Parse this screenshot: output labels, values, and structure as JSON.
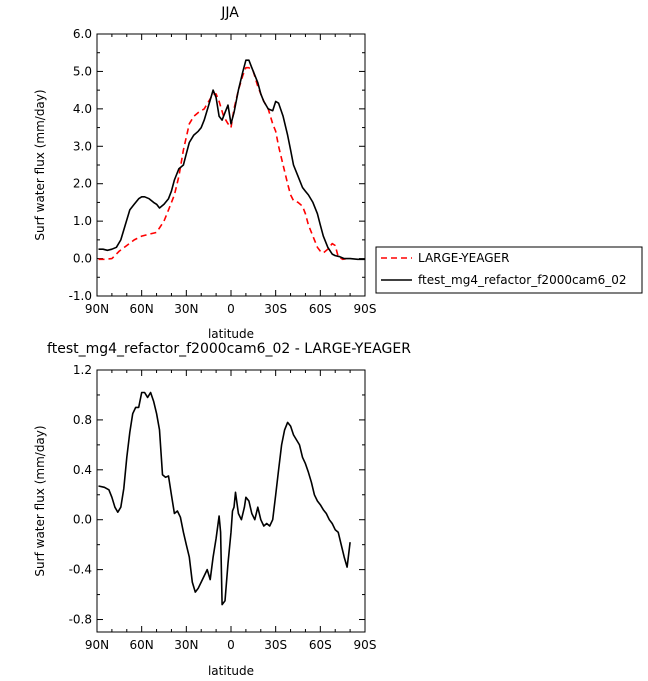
{
  "chart_data": [
    {
      "type": "line",
      "title": "JJA",
      "xlabel": "latitude",
      "ylabel": "Surf water flux (mm/day)",
      "x_is_latitude_deg": true,
      "xlim": [
        90,
        -90
      ],
      "ylim": [
        -1.0,
        6.0
      ],
      "xticks": [
        90,
        60,
        30,
        0,
        -30,
        -60,
        -90
      ],
      "xtick_labels": [
        "90N",
        "60N",
        "30N",
        "0",
        "30S",
        "60S",
        "90S"
      ],
      "yticks": [
        -1,
        0,
        1,
        2,
        3,
        4,
        5,
        6
      ],
      "ytick_labels": [
        "-1.0",
        "0.0",
        "1.0",
        "2.0",
        "3.0",
        "4.0",
        "5.0",
        "6.0"
      ],
      "grid": false,
      "legend_placement": "right, outside plot",
      "series": [
        {
          "name": "LARGE-YEAGER",
          "color": "#ff0000",
          "dash": "dashed",
          "x": [
            89,
            85,
            80,
            75,
            70,
            65,
            60,
            55,
            50,
            45,
            42,
            38,
            35,
            32,
            28,
            25,
            22,
            18,
            15,
            12,
            10,
            8,
            5,
            2,
            0,
            -2,
            -5,
            -8,
            -10,
            -12,
            -15,
            -18,
            -20,
            -22,
            -25,
            -28,
            -30,
            -32,
            -35,
            -38,
            -40,
            -42,
            -45,
            -48,
            -50,
            -52,
            -55,
            -58,
            -60,
            -62,
            -65,
            -68,
            -70,
            -72,
            -75,
            -78,
            -80
          ],
          "y": [
            -0.02,
            -0.02,
            0.0,
            0.2,
            0.35,
            0.5,
            0.6,
            0.65,
            0.7,
            1.0,
            1.3,
            1.7,
            2.2,
            2.9,
            3.6,
            3.8,
            3.9,
            4.0,
            4.2,
            4.4,
            4.4,
            4.2,
            3.8,
            3.6,
            3.5,
            4.0,
            4.5,
            4.9,
            5.1,
            5.1,
            5.0,
            4.6,
            4.4,
            4.2,
            4.0,
            3.6,
            3.4,
            3.0,
            2.5,
            2.0,
            1.7,
            1.55,
            1.5,
            1.4,
            1.2,
            0.9,
            0.6,
            0.3,
            0.2,
            0.15,
            0.25,
            0.4,
            0.35,
            0.05,
            -0.02,
            0.0,
            0.0
          ]
        },
        {
          "name": "ftest_mg4_refactor_f2000cam6_02",
          "color": "#000000",
          "dash": "solid",
          "x": [
            89,
            86,
            83,
            80,
            77,
            74,
            71,
            68,
            65,
            62,
            60,
            58,
            55,
            52,
            50,
            48,
            45,
            42,
            40,
            38,
            35,
            32,
            30,
            28,
            25,
            22,
            20,
            18,
            15,
            12,
            10,
            8,
            6,
            4,
            2,
            0,
            -2,
            -5,
            -8,
            -10,
            -12,
            -14,
            -16,
            -18,
            -20,
            -22,
            -25,
            -28,
            -30,
            -32,
            -35,
            -38,
            -40,
            -42,
            -45,
            -48,
            -50,
            -52,
            -55,
            -58,
            -60,
            -62,
            -65,
            -68,
            -70,
            -73,
            -76,
            -80,
            -85,
            -90
          ],
          "y": [
            0.25,
            0.25,
            0.22,
            0.25,
            0.3,
            0.5,
            0.9,
            1.3,
            1.45,
            1.6,
            1.65,
            1.65,
            1.6,
            1.5,
            1.45,
            1.35,
            1.45,
            1.6,
            1.8,
            2.1,
            2.4,
            2.5,
            2.8,
            3.1,
            3.3,
            3.4,
            3.5,
            3.7,
            4.1,
            4.5,
            4.3,
            3.8,
            3.7,
            3.9,
            4.1,
            3.6,
            3.9,
            4.5,
            5.0,
            5.3,
            5.3,
            5.1,
            4.9,
            4.7,
            4.4,
            4.2,
            4.0,
            3.95,
            4.2,
            4.15,
            3.8,
            3.3,
            2.9,
            2.5,
            2.2,
            1.9,
            1.8,
            1.7,
            1.5,
            1.2,
            0.9,
            0.6,
            0.3,
            0.12,
            0.08,
            0.05,
            0.0,
            0.0,
            -0.02,
            -0.02
          ]
        }
      ]
    },
    {
      "type": "line",
      "title": "ftest_mg4_refactor_f2000cam6_02 - LARGE-YEAGER",
      "xlabel": "latitude",
      "ylabel": "Surf water flux (mm/day)",
      "x_is_latitude_deg": true,
      "xlim": [
        90,
        -90
      ],
      "ylim": [
        -0.9,
        1.2
      ],
      "xticks": [
        90,
        60,
        30,
        0,
        -30,
        -60,
        -90
      ],
      "xtick_labels": [
        "90N",
        "60N",
        "30N",
        "0",
        "30S",
        "60S",
        "90S"
      ],
      "yticks": [
        -0.8,
        -0.4,
        0.0,
        0.4,
        0.8,
        1.2
      ],
      "ytick_labels": [
        "-0.8",
        "-0.4",
        "0.0",
        "0.4",
        "0.8",
        "1.2"
      ],
      "grid": false,
      "series": [
        {
          "color": "#000000",
          "dash": "solid",
          "x": [
            89,
            85,
            82,
            80,
            78,
            76,
            74,
            72,
            70,
            68,
            66,
            64,
            62,
            60,
            58,
            56,
            54,
            52,
            50,
            48,
            46,
            44,
            42,
            40,
            38,
            36,
            34,
            32,
            30,
            28,
            26,
            24,
            22,
            20,
            18,
            16,
            14,
            12,
            10,
            8,
            7,
            6,
            4,
            2,
            0,
            -1,
            -2,
            -3,
            -5,
            -7,
            -9,
            -10,
            -12,
            -14,
            -16,
            -18,
            -20,
            -22,
            -24,
            -26,
            -28,
            -30,
            -32,
            -34,
            -36,
            -38,
            -40,
            -42,
            -44,
            -46,
            -48,
            -50,
            -52,
            -54,
            -56,
            -58,
            -60,
            -62,
            -64,
            -66,
            -68,
            -70,
            -72,
            -74,
            -76,
            -78,
            -80
          ],
          "y": [
            0.27,
            0.26,
            0.24,
            0.18,
            0.1,
            0.06,
            0.1,
            0.25,
            0.5,
            0.7,
            0.85,
            0.9,
            0.9,
            1.02,
            1.02,
            0.98,
            1.02,
            0.95,
            0.85,
            0.72,
            0.36,
            0.34,
            0.35,
            0.2,
            0.05,
            0.07,
            0.02,
            -0.1,
            -0.2,
            -0.3,
            -0.5,
            -0.58,
            -0.55,
            -0.5,
            -0.45,
            -0.4,
            -0.48,
            -0.3,
            -0.15,
            0.03,
            -0.1,
            -0.68,
            -0.65,
            -0.35,
            -0.1,
            0.07,
            0.1,
            0.22,
            0.05,
            0.0,
            0.1,
            0.18,
            0.15,
            0.05,
            0.0,
            0.1,
            0.0,
            -0.05,
            -0.03,
            -0.05,
            0.0,
            0.2,
            0.4,
            0.6,
            0.72,
            0.78,
            0.75,
            0.68,
            0.64,
            0.6,
            0.5,
            0.45,
            0.38,
            0.3,
            0.2,
            0.15,
            0.12,
            0.08,
            0.05,
            0.0,
            -0.03,
            -0.08,
            -0.1,
            -0.2,
            -0.3,
            -0.38,
            -0.18
          ]
        }
      ]
    }
  ]
}
